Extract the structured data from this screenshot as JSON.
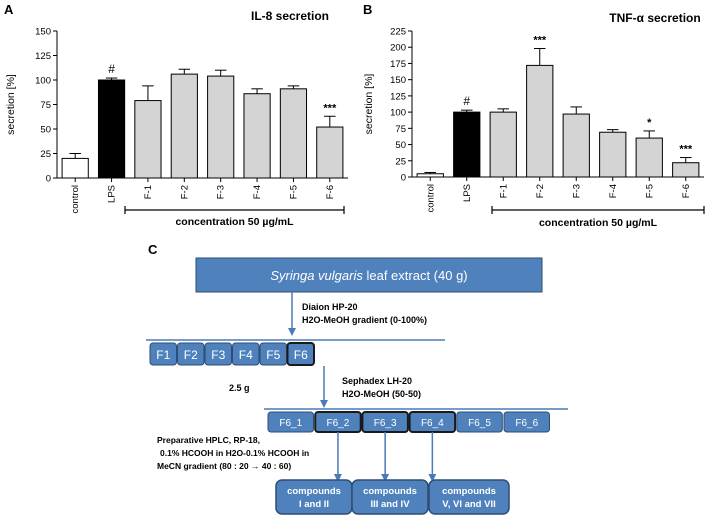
{
  "panels": {
    "a": "A",
    "b": "B",
    "c": "C"
  },
  "chart_data": [
    {
      "type": "bar",
      "panel": "A",
      "title": "IL-8 secretion",
      "ylabel": "secretion [%]",
      "xlabel": "concentration 50 µg/mL",
      "ylim": [
        0,
        150
      ],
      "yticks": [
        0,
        25,
        50,
        75,
        100,
        125,
        150
      ],
      "categories": [
        "control",
        "LPS",
        "F-1",
        "F-2",
        "F-3",
        "F-4",
        "F-5",
        "F-6"
      ],
      "values": [
        20,
        100,
        79,
        106,
        104,
        86,
        91,
        52
      ],
      "errors": [
        5,
        2,
        15,
        5,
        6,
        5,
        3,
        11
      ],
      "annotations": [
        "",
        "#",
        "",
        "",
        "",
        "",
        "",
        "***"
      ],
      "fills": [
        "#ffffff",
        "#000000",
        "#d4d4d4",
        "#d4d4d4",
        "#d4d4d4",
        "#d4d4d4",
        "#d4d4d4",
        "#d4d4d4"
      ],
      "bracket_from": 2,
      "bracket_to": 7
    },
    {
      "type": "bar",
      "panel": "B",
      "title": "TNF-α secretion",
      "ylabel": "secretion [%]",
      "xlabel": "concentration 50 µg/mL",
      "ylim": [
        0,
        225
      ],
      "yticks": [
        0,
        25,
        50,
        75,
        100,
        125,
        150,
        175,
        200,
        225
      ],
      "categories": [
        "control",
        "LPS",
        "F-1",
        "F-2",
        "F-3",
        "F-4",
        "F-5",
        "F-6"
      ],
      "values": [
        5,
        100,
        100,
        172,
        97,
        69,
        60,
        22
      ],
      "errors": [
        2,
        3,
        5,
        26,
        11,
        4,
        11,
        8
      ],
      "annotations": [
        "",
        "#",
        "",
        "***",
        "",
        "",
        "*",
        "***"
      ],
      "fills": [
        "#ffffff",
        "#000000",
        "#d4d4d4",
        "#d4d4d4",
        "#d4d4d4",
        "#d4d4d4",
        "#d4d4d4",
        "#d4d4d4"
      ],
      "bracket_from": 2,
      "bracket_to": 7
    }
  ],
  "scheme": {
    "extract": {
      "species": "Syringa vulgaris",
      "rest": " leaf extract (40 g)"
    },
    "step1": {
      "line1": "Diaion HP-20",
      "line2": "H2O-MeOH gradient (0-100%)"
    },
    "fractions": [
      "F1",
      "F2",
      "F3",
      "F4",
      "F5",
      "F6"
    ],
    "mass": "2.5 g",
    "step2": {
      "line1": "Sephadex LH-20",
      "line2": "H2O-MeOH  (50-50)"
    },
    "subfractions": [
      "F6_1",
      "F6_2",
      "F6_3",
      "F6_4",
      "F6_5",
      "F6_6"
    ],
    "step3": {
      "line1": "Preparative HPLC, RP-18,",
      "line2": "0.1% HCOOH in H2O-0.1% HCOOH in",
      "line3": "MeCN gradient (80 : 20 → 40 : 60)"
    },
    "compounds": [
      {
        "line1": "compounds",
        "line2": "I and  II"
      },
      {
        "line1": "compounds",
        "line2": "III and  IV"
      },
      {
        "line1": "compounds",
        "line2": "V, VI and  VII"
      }
    ],
    "colors": {
      "box": "#4f81bd",
      "border": "#2e4d73",
      "line": "#4a7ab8"
    }
  }
}
